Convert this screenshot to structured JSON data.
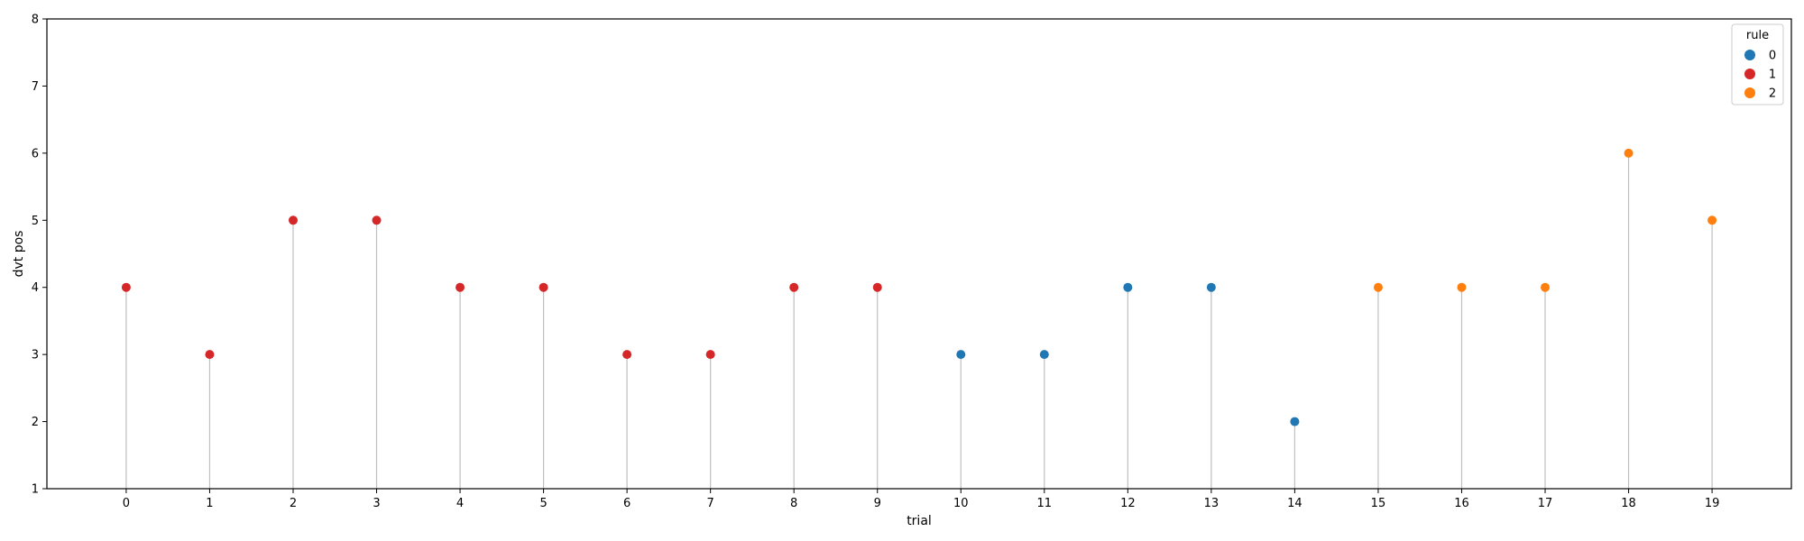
{
  "chart_data": {
    "type": "scatter",
    "style": "stem",
    "xlabel": "trial",
    "ylabel": "dvt pos",
    "xlim": [
      -0.95,
      19.95
    ],
    "ylim": [
      1,
      8
    ],
    "x_ticks": [
      "0",
      "1",
      "2",
      "3",
      "4",
      "5",
      "6",
      "7",
      "8",
      "9",
      "10",
      "11",
      "12",
      "13",
      "14",
      "15",
      "16",
      "17",
      "18",
      "19"
    ],
    "y_ticks": [
      "1",
      "2",
      "3",
      "4",
      "5",
      "6",
      "7",
      "8"
    ],
    "grid": false,
    "legend": {
      "title": "rule",
      "placement": "top-right",
      "entries": [
        {
          "label": "0",
          "color": "#1f77b4"
        },
        {
          "label": "1",
          "color": "#d62728"
        },
        {
          "label": "2",
          "color": "#ff7f0e"
        }
      ]
    },
    "stem_color": "#bfbfbf",
    "points": [
      {
        "x": 0,
        "y": 4,
        "rule": 1
      },
      {
        "x": 1,
        "y": 3,
        "rule": 1
      },
      {
        "x": 2,
        "y": 5,
        "rule": 1
      },
      {
        "x": 3,
        "y": 5,
        "rule": 1
      },
      {
        "x": 4,
        "y": 4,
        "rule": 1
      },
      {
        "x": 5,
        "y": 4,
        "rule": 1
      },
      {
        "x": 6,
        "y": 3,
        "rule": 1
      },
      {
        "x": 7,
        "y": 3,
        "rule": 1
      },
      {
        "x": 8,
        "y": 4,
        "rule": 1
      },
      {
        "x": 9,
        "y": 4,
        "rule": 1
      },
      {
        "x": 10,
        "y": 3,
        "rule": 0
      },
      {
        "x": 11,
        "y": 3,
        "rule": 0
      },
      {
        "x": 12,
        "y": 4,
        "rule": 0
      },
      {
        "x": 13,
        "y": 4,
        "rule": 0
      },
      {
        "x": 14,
        "y": 2,
        "rule": 0
      },
      {
        "x": 15,
        "y": 4,
        "rule": 2
      },
      {
        "x": 16,
        "y": 4,
        "rule": 2
      },
      {
        "x": 17,
        "y": 4,
        "rule": 2
      },
      {
        "x": 18,
        "y": 6,
        "rule": 2
      },
      {
        "x": 19,
        "y": 5,
        "rule": 2
      }
    ]
  }
}
